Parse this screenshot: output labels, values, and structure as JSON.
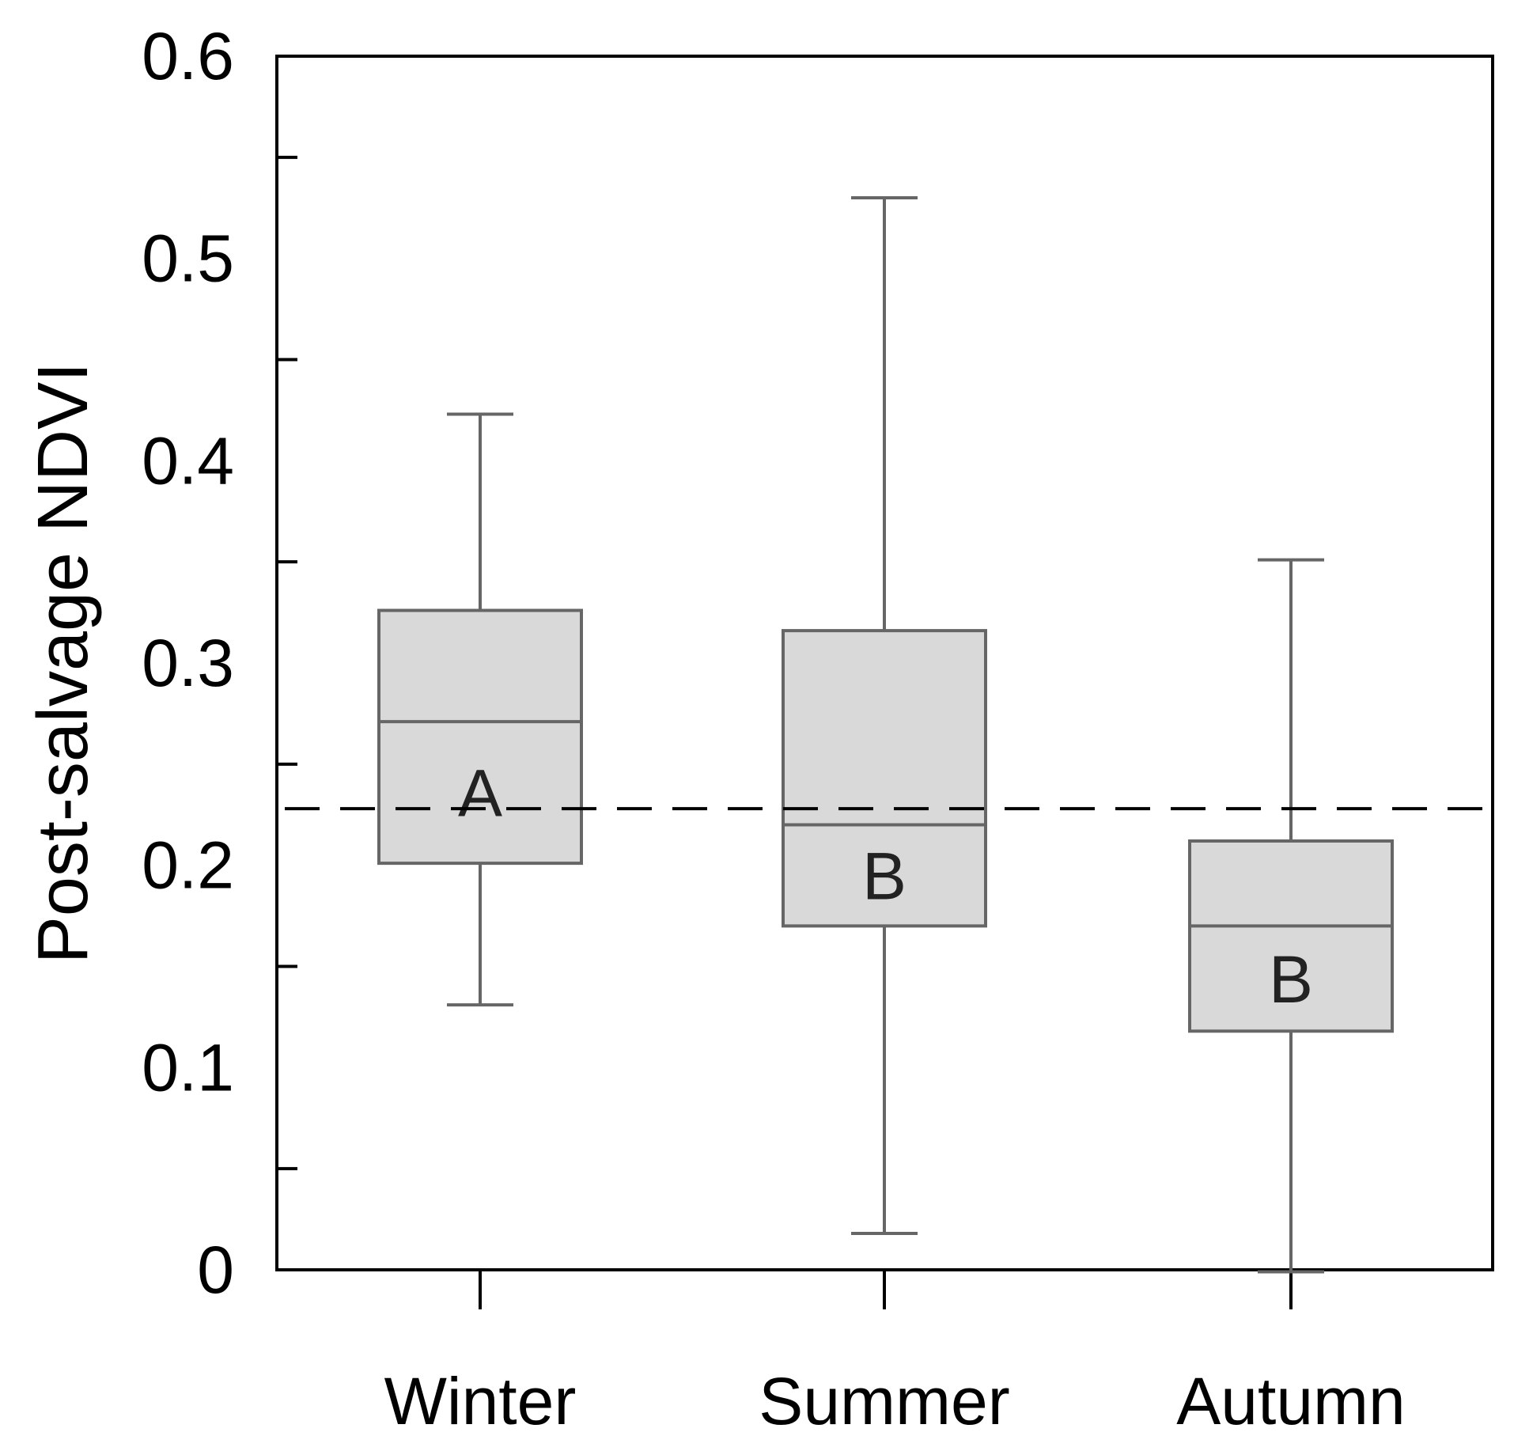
{
  "chart_data": {
    "type": "box",
    "ylabel": "Post-salvage NDVI",
    "xlabel": "",
    "ylim": [
      0,
      0.6
    ],
    "yticks_labeled": [
      "0",
      "0.1",
      "0.2",
      "0.3",
      "0.4",
      "0.5",
      "0.6"
    ],
    "yticks_labeled_values": [
      0,
      0.1,
      0.2,
      0.3,
      0.4,
      0.5,
      0.6
    ],
    "yticks_minor_values": [
      0.05,
      0.15,
      0.25,
      0.35,
      0.45,
      0.55
    ],
    "categories": [
      "Winter",
      "Summer",
      "Autumn"
    ],
    "boxes": [
      {
        "category": "Winter",
        "whisker_low": 0.131,
        "q1": 0.201,
        "median": 0.271,
        "q3": 0.326,
        "whisker_high": 0.423,
        "group_letter": "A"
      },
      {
        "category": "Summer",
        "whisker_low": 0.018,
        "q1": 0.17,
        "median": 0.22,
        "q3": 0.316,
        "whisker_high": 0.53,
        "group_letter": "B"
      },
      {
        "category": "Autumn",
        "whisker_low": -0.001,
        "q1": 0.118,
        "median": 0.17,
        "q3": 0.212,
        "whisker_high": 0.351,
        "group_letter": "B"
      }
    ],
    "reference_line": {
      "value": 0.228,
      "style": "dashed"
    },
    "colors": {
      "box_fill": "#d9d9d9",
      "box_stroke": "#666666",
      "axis": "#000000",
      "reference_line": "#000000"
    },
    "grid": false,
    "legend": "none"
  }
}
